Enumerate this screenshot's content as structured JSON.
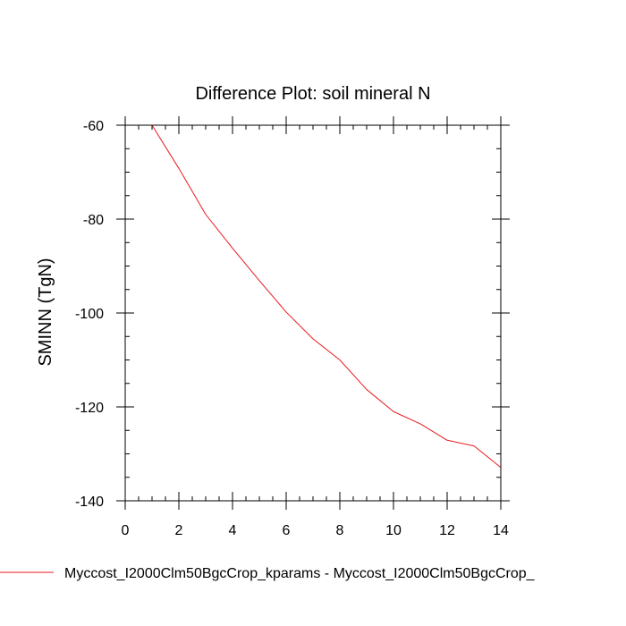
{
  "chart_data": {
    "type": "line",
    "title": "Difference Plot: soil mineral N",
    "xlabel": "",
    "ylabel": "SMINN  (TgN)",
    "xlim": [
      0,
      14
    ],
    "ylim": [
      -140,
      -60
    ],
    "xticks": [
      0,
      2,
      4,
      6,
      8,
      10,
      12,
      14
    ],
    "yticks": [
      -60,
      -80,
      -100,
      -120,
      -140
    ],
    "grid": false,
    "legend_position": "bottom",
    "series": [
      {
        "name": "Myccost_I2000Clm50BgcCrop_kparams - Myccost_I2000Clm50BgcCrop_",
        "color": "#e8191e",
        "x": [
          1,
          2,
          3,
          4,
          5,
          6,
          7,
          8,
          9,
          10,
          11,
          12,
          13,
          14
        ],
        "y": [
          -60,
          -69.2,
          -79,
          -86.2,
          -93.1,
          -99.8,
          -105.5,
          -110,
          -116.3,
          -121,
          -123.6,
          -127.1,
          -128.3,
          -132.9
        ]
      }
    ]
  }
}
